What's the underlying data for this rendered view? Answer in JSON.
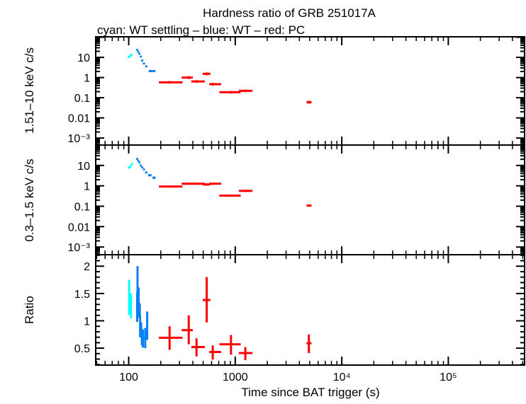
{
  "title": "Hardness ratio of GRB 251017A",
  "subtitle": "cyan: WT settling – blue: WT – red: PC",
  "xlabel": "Time since BAT trigger (s)",
  "colors": {
    "cyan": "#00ffff",
    "blue": "#0a7ff5",
    "red": "#ff0000"
  },
  "chart_data": [
    {
      "type": "scatter",
      "ylabel": "1.51–10 keV c/s",
      "xscale": "log",
      "yscale": "log",
      "xlim": [
        49,
        520000
      ],
      "ylim": [
        0.00045,
        105
      ],
      "yticks": [
        {
          "v": 10,
          "label": "10"
        },
        {
          "v": 1,
          "label": "1"
        },
        {
          "v": 0.1,
          "label": "0.1"
        },
        {
          "v": 0.01,
          "label": "0.01"
        },
        {
          "v": 0.001,
          "label": "10⁻³"
        }
      ],
      "series": [
        {
          "color": "cyan",
          "points": [
            [
              100,
              98,
              102,
              10.5,
              9.5,
              11.5
            ],
            [
              103,
              101,
              105,
              11.5,
              10.5,
              12.6
            ],
            [
              106,
              104,
              108,
              13.5,
              12.3,
              14.8
            ]
          ]
        },
        {
          "color": "blue",
          "points": [
            [
              120,
              119,
              121,
              23.7,
              21.5,
              26
            ],
            [
              123,
              122,
              124,
              19,
              17,
              21
            ],
            [
              126,
              125,
              127,
              15,
              13.5,
              16.5
            ],
            [
              130,
              129,
              131,
              11,
              10,
              12
            ],
            [
              134,
              133,
              135,
              7,
              6.3,
              7.8
            ],
            [
              139,
              138,
              140,
              5,
              4.5,
              5.5
            ],
            [
              146,
              144,
              148,
              3.6,
              3.2,
              4
            ],
            [
              160,
              154,
              166,
              2.1,
              1.9,
              2.3
            ],
            [
              172,
              166,
              178,
              2.1,
              1.9,
              2.3
            ]
          ]
        },
        {
          "color": "red",
          "points": [
            [
              242,
              192,
              320,
              0.58,
              0.5,
              0.67
            ],
            [
              366,
              314,
              400,
              1.0,
              0.85,
              1.18
            ],
            [
              433,
              387,
              518,
              0.64,
              0.55,
              0.74
            ],
            [
              540,
              494,
              584,
              1.53,
              1.3,
              1.8
            ],
            [
              615,
              570,
              738,
              0.47,
              0.4,
              0.55
            ],
            [
              912,
              710,
              1125,
              0.186,
              0.16,
              0.215
            ],
            [
              1244,
              1080,
              1450,
              0.22,
              0.19,
              0.255
            ],
            [
              4910,
              4670,
              5200,
              0.06,
              0.051,
              0.07
            ]
          ]
        }
      ]
    },
    {
      "type": "scatter",
      "ylabel": "0.3–1.5 keV c/s",
      "xscale": "log",
      "yscale": "log",
      "xlim": [
        49,
        520000
      ],
      "ylim": [
        0.00042,
        100
      ],
      "yticks": [
        {
          "v": 10,
          "label": "10"
        },
        {
          "v": 1,
          "label": "1"
        },
        {
          "v": 0.1,
          "label": "0.1"
        },
        {
          "v": 0.01,
          "label": "0.01"
        },
        {
          "v": 0.001,
          "label": "10⁻³"
        }
      ],
      "series": [
        {
          "color": "cyan",
          "points": [
            [
              101,
              99,
              103,
              7.9,
              7.1,
              8.8
            ],
            [
              104,
              102,
              106,
              9,
              8.1,
              10
            ],
            [
              107,
              105,
              109,
              11.7,
              10.5,
              13
            ]
          ]
        },
        {
          "color": "blue",
          "points": [
            [
              120,
              119,
              121,
              20.9,
              19,
              23
            ],
            [
              123,
              122,
              124,
              17,
              15.5,
              18.7
            ],
            [
              126,
              125,
              127,
              14,
              12.7,
              15.4
            ],
            [
              130,
              129,
              131,
              10,
              9,
              11
            ],
            [
              134,
              133,
              135,
              8,
              7.2,
              8.8
            ],
            [
              139,
              138,
              140,
              6.4,
              5.8,
              7
            ],
            [
              146,
              144,
              148,
              4.5,
              4,
              5
            ],
            [
              158,
              152,
              164,
              3.3,
              3,
              3.6
            ],
            [
              173,
              167,
              179,
              2.5,
              2.2,
              2.8
            ]
          ]
        },
        {
          "color": "red",
          "points": [
            [
              242,
              192,
              320,
              0.93,
              0.82,
              1.05
            ],
            [
              366,
              314,
              400,
              1.27,
              1.12,
              1.44
            ],
            [
              433,
              387,
              518,
              1.27,
              1.12,
              1.44
            ],
            [
              540,
              494,
              584,
              1.17,
              1.02,
              1.34
            ],
            [
              615,
              570,
              738,
              1.27,
              1.12,
              1.44
            ],
            [
              912,
              710,
              1125,
              0.33,
              0.29,
              0.37
            ],
            [
              1244,
              1080,
              1450,
              0.57,
              0.5,
              0.65
            ],
            [
              4910,
              4670,
              5200,
              0.108,
              0.095,
              0.123
            ]
          ]
        }
      ]
    },
    {
      "type": "scatter",
      "ylabel": "Ratio",
      "xscale": "log",
      "yscale": "linear",
      "xlim": [
        49,
        520000
      ],
      "ylim": [
        0.19,
        2.21
      ],
      "yticks": [
        {
          "v": 2,
          "label": "2"
        },
        {
          "v": 1.5,
          "label": "1.5"
        },
        {
          "v": 1,
          "label": "1"
        },
        {
          "v": 0.5,
          "label": "0.5"
        }
      ],
      "xticks": [
        {
          "v": 100,
          "label": "100"
        },
        {
          "v": 1000,
          "label": "1000"
        },
        {
          "v": 10000,
          "label": "10⁴"
        },
        {
          "v": 100000,
          "label": "10⁵"
        }
      ],
      "series": [
        {
          "color": "cyan",
          "points": [
            [
              101,
              100,
              102,
              1.43,
              1.11,
              1.75
            ],
            [
              105,
              104,
              106,
              1.28,
              1.05,
              1.5
            ]
          ]
        },
        {
          "color": "blue",
          "points": [
            [
              120,
              119,
              121,
              1.26,
              0.98,
              1.52
            ],
            [
              121,
              120,
              122,
              1.66,
              1.31,
              2.0
            ],
            [
              124,
              123,
              125,
              1.35,
              1.06,
              1.61
            ],
            [
              127,
              126,
              128,
              1.18,
              1.05,
              1.32
            ],
            [
              128,
              127,
              129,
              0.92,
              0.7,
              1.1
            ],
            [
              131,
              130,
              132,
              0.79,
              0.69,
              0.97
            ],
            [
              133,
              132,
              134,
              0.75,
              0.55,
              0.85
            ],
            [
              136,
              134,
              140,
              0.69,
              0.51,
              0.84
            ],
            [
              143,
              140,
              146,
              0.69,
              0.5,
              0.87
            ],
            [
              149,
              146,
              152,
              0.91,
              0.65,
              1.17
            ]
          ]
        },
        {
          "color": "red",
          "points": [
            [
              242,
              192,
              320,
              0.69,
              0.47,
              0.9
            ],
            [
              366,
              314,
              400,
              0.83,
              0.57,
              1.1
            ],
            [
              433,
              387,
              518,
              0.52,
              0.35,
              0.68
            ],
            [
              540,
              494,
              584,
              1.38,
              0.97,
              1.8
            ],
            [
              615,
              570,
              738,
              0.43,
              0.29,
              0.55
            ],
            [
              912,
              710,
              1125,
              0.57,
              0.38,
              0.74
            ],
            [
              1244,
              1080,
              1450,
              0.41,
              0.28,
              0.52
            ],
            [
              4910,
              4670,
              5200,
              0.59,
              0.41,
              0.75
            ]
          ]
        }
      ]
    }
  ]
}
